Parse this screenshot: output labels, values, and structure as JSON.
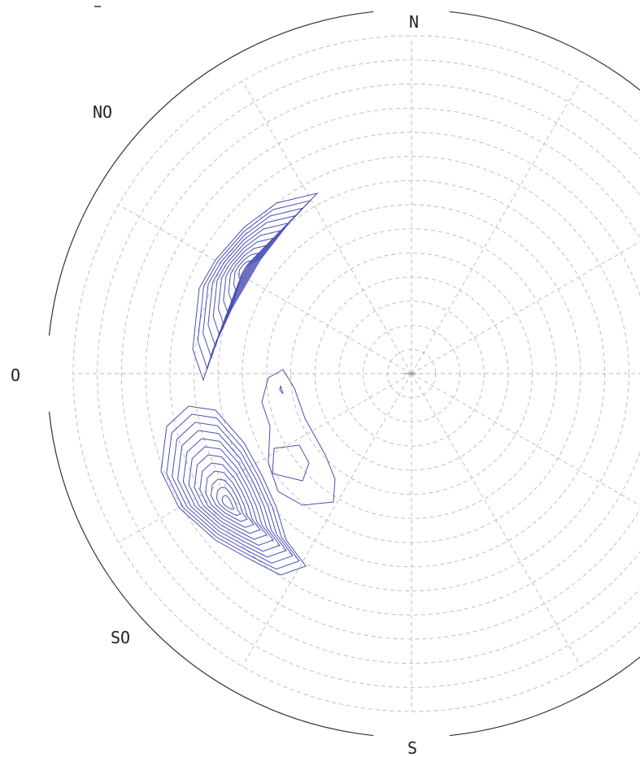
{
  "chart_data": {
    "type": "polar-contour",
    "title": "",
    "directions": {
      "n": "N",
      "no": "NO",
      "o": "O",
      "so": "SO",
      "s": "S"
    },
    "rings": 14,
    "spokes_every_deg": 30,
    "grid": true,
    "contour_color": "#4a4fb5",
    "grid_color": "#b8b8b8",
    "outline_color": "#333333"
  }
}
